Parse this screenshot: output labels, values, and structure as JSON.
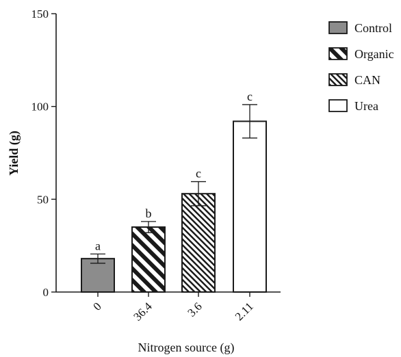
{
  "chart_data": {
    "type": "bar",
    "xlabel": "Nitrogen source (g)",
    "ylabel": "Yield (g)",
    "ylim": [
      0,
      150
    ],
    "yticks": [
      "0",
      "50",
      "100",
      "150"
    ],
    "categories": [
      "0",
      "36.4",
      "3.6",
      "2.11"
    ],
    "series": [
      {
        "name": "Control",
        "pattern": "solid-gray",
        "values": [
          18,
          null,
          null,
          null
        ],
        "errors": [
          2.5,
          null,
          null,
          null
        ],
        "labels": [
          "a",
          null,
          null,
          null
        ]
      },
      {
        "name": "Organic",
        "pattern": "wide-hatch",
        "values": [
          null,
          35,
          null,
          null
        ],
        "errors": [
          null,
          3,
          null,
          null
        ],
        "labels": [
          null,
          "b",
          null,
          null
        ]
      },
      {
        "name": "CAN",
        "pattern": "fine-hatch",
        "values": [
          null,
          null,
          53,
          null
        ],
        "errors": [
          null,
          null,
          6.5,
          null
        ],
        "labels": [
          null,
          null,
          "c",
          null
        ]
      },
      {
        "name": "Urea",
        "pattern": "white",
        "values": [
          null,
          null,
          null,
          92
        ],
        "errors": [
          null,
          null,
          null,
          9
        ],
        "labels": [
          null,
          null,
          null,
          "c"
        ]
      }
    ],
    "legend_position": "top-right",
    "grid": false,
    "colors": {
      "control_fill": "#8c8c8c",
      "stroke": "#1a1a1a",
      "background": "#ffffff"
    }
  }
}
